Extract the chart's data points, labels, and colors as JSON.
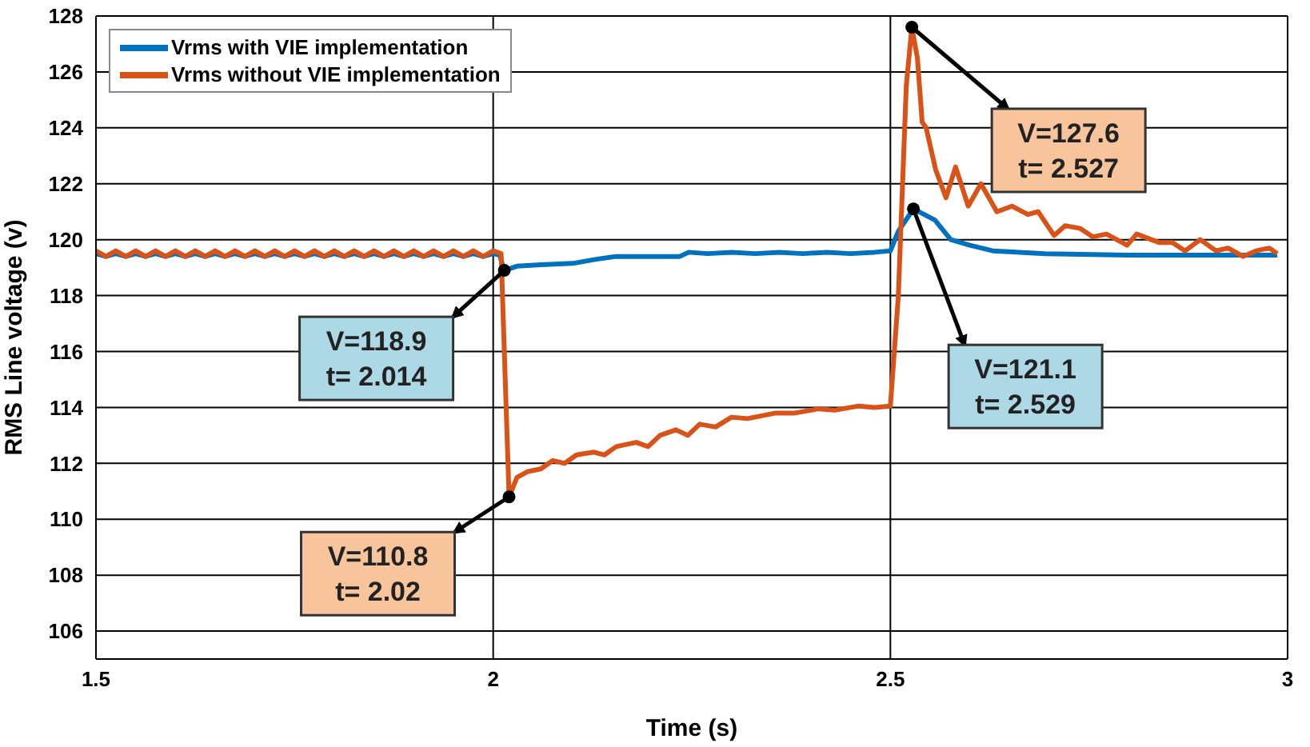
{
  "chart_data": {
    "type": "line",
    "xlabel": "Time (s)",
    "ylabel": "RMS Line voltage (v)",
    "xlim": [
      1.5,
      3
    ],
    "xticks": [
      1.5,
      2,
      2.5,
      3
    ],
    "ylim": [
      105,
      128
    ],
    "yticks": [
      106,
      108,
      110,
      112,
      114,
      116,
      118,
      120,
      122,
      124,
      126,
      128
    ],
    "grid": true,
    "legend": "top left",
    "marker": "none",
    "line_style": "solid",
    "series": [
      {
        "name": "Vrms with VIE implementation",
        "color": "#0072bd",
        "x": [
          1.5,
          1.5125,
          1.525,
          1.5375,
          1.55,
          1.5625,
          1.575,
          1.5875,
          1.6,
          1.6125,
          1.625,
          1.6375,
          1.65,
          1.6625,
          1.675,
          1.6875,
          1.7,
          1.7125,
          1.725,
          1.7375,
          1.75,
          1.7625,
          1.775,
          1.7875,
          1.8,
          1.8125,
          1.825,
          1.8375,
          1.85,
          1.8625,
          1.875,
          1.8875,
          1.9,
          1.9125,
          1.925,
          1.9375,
          1.95,
          1.9625,
          1.975,
          1.9875,
          2.0,
          2.008,
          2.014,
          2.03,
          2.06,
          2.1,
          2.13,
          2.155,
          2.235,
          2.246,
          2.27,
          2.3,
          2.33,
          2.36,
          2.39,
          2.42,
          2.45,
          2.48,
          2.5,
          2.51,
          2.529,
          2.556,
          2.576,
          2.6,
          2.629,
          2.695,
          2.8,
          2.9,
          2.987
        ],
        "values": [
          119.5,
          119.4,
          119.5,
          119.4,
          119.5,
          119.4,
          119.5,
          119.4,
          119.5,
          119.4,
          119.5,
          119.4,
          119.5,
          119.4,
          119.5,
          119.4,
          119.5,
          119.4,
          119.5,
          119.4,
          119.5,
          119.4,
          119.5,
          119.4,
          119.5,
          119.4,
          119.5,
          119.4,
          119.5,
          119.4,
          119.5,
          119.4,
          119.5,
          119.4,
          119.5,
          119.4,
          119.5,
          119.4,
          119.5,
          119.4,
          119.5,
          119.45,
          118.9,
          119.05,
          119.1,
          119.15,
          119.3,
          119.4,
          119.4,
          119.55,
          119.5,
          119.55,
          119.5,
          119.55,
          119.5,
          119.55,
          119.5,
          119.55,
          119.6,
          120.3,
          121.1,
          120.7,
          120.0,
          119.8,
          119.6,
          119.5,
          119.45,
          119.45,
          119.45
        ]
      },
      {
        "name": "Vrms without VIE implementation",
        "color": "#d95319",
        "x": [
          1.5,
          1.5125,
          1.525,
          1.5375,
          1.55,
          1.5625,
          1.575,
          1.5875,
          1.6,
          1.6125,
          1.625,
          1.6375,
          1.65,
          1.6625,
          1.675,
          1.6875,
          1.7,
          1.7125,
          1.725,
          1.7375,
          1.75,
          1.7625,
          1.775,
          1.7875,
          1.8,
          1.8125,
          1.825,
          1.8375,
          1.85,
          1.8625,
          1.875,
          1.8875,
          1.9,
          1.9125,
          1.925,
          1.9375,
          1.95,
          1.9625,
          1.975,
          1.9875,
          2.0,
          2.01,
          2.02,
          2.03,
          2.043,
          2.06,
          2.075,
          2.09,
          2.105,
          2.127,
          2.14,
          2.155,
          2.18,
          2.195,
          2.21,
          2.23,
          2.245,
          2.26,
          2.28,
          2.3,
          2.32,
          2.356,
          2.38,
          2.41,
          2.43,
          2.46,
          2.48,
          2.5,
          2.51,
          2.52,
          2.527,
          2.534,
          2.54,
          2.545,
          2.557,
          2.57,
          2.582,
          2.598,
          2.614,
          2.634,
          2.653,
          2.673,
          2.686,
          2.706,
          2.72,
          2.739,
          2.755,
          2.772,
          2.798,
          2.81,
          2.838,
          2.855,
          2.871,
          2.89,
          2.91,
          2.925,
          2.944,
          2.96,
          2.977,
          2.987
        ],
        "values": [
          119.6,
          119.4,
          119.6,
          119.4,
          119.6,
          119.4,
          119.6,
          119.4,
          119.6,
          119.4,
          119.6,
          119.4,
          119.6,
          119.4,
          119.6,
          119.4,
          119.6,
          119.4,
          119.6,
          119.4,
          119.6,
          119.4,
          119.6,
          119.4,
          119.6,
          119.4,
          119.6,
          119.4,
          119.6,
          119.4,
          119.6,
          119.4,
          119.6,
          119.4,
          119.6,
          119.4,
          119.6,
          119.4,
          119.6,
          119.4,
          119.6,
          119.5,
          110.8,
          111.5,
          111.7,
          111.8,
          112.1,
          112.0,
          112.3,
          112.4,
          112.3,
          112.6,
          112.75,
          112.6,
          113.0,
          113.2,
          113.0,
          113.4,
          113.3,
          113.65,
          113.6,
          113.8,
          113.8,
          113.95,
          113.9,
          114.05,
          114.0,
          114.05,
          118,
          125.5,
          127.6,
          126.5,
          124.2,
          124.0,
          122.5,
          121.5,
          122.6,
          121.2,
          122.0,
          121.0,
          121.2,
          120.9,
          121.0,
          120.15,
          120.5,
          120.4,
          120.1,
          120.2,
          119.8,
          120.2,
          119.9,
          119.9,
          119.6,
          120.0,
          119.6,
          119.7,
          119.4,
          119.6,
          119.7,
          119.5
        ]
      }
    ],
    "annotations": [
      {
        "text": "V=118.9\nt= 2.014",
        "x": 2.014,
        "y": 118.9
      },
      {
        "text": "V=110.8\nt= 2.02",
        "x": 2.02,
        "y": 110.8
      },
      {
        "text": "V=127.6\nt= 2.527",
        "x": 2.527,
        "y": 127.6
      },
      {
        "text": "V=121.1\nt= 2.529",
        "x": 2.529,
        "y": 121.1
      }
    ]
  }
}
